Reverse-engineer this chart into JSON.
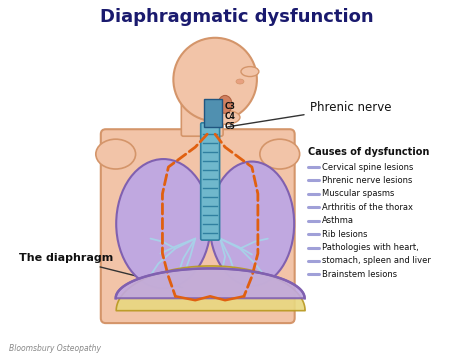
{
  "title": "Diaphragmatic dysfunction",
  "title_color": "#1a1a6e",
  "title_fontsize": 13,
  "title_fontweight": "bold",
  "bg_color": "#ffffff",
  "phrenic_nerve_label": "Phrenic nerve",
  "diaphragm_label": "The diaphragm",
  "c3_label": "C3",
  "c4_label": "C4",
  "c5_label": "C5",
  "causes_title": "Causes of dysfunction",
  "causes": [
    "Cervical spine lesions",
    "Phrenic nerve lesions",
    "Muscular spasms",
    "Arthritis of the thorax",
    "Asthma",
    "Rib lesions",
    "Pathologies with heart,",
    "stomach, spleen and liver",
    "Brainstem lesions"
  ],
  "cause_dash_color": "#a0a0d8",
  "watermark": "Bloomsbury Osteopathy",
  "skin_color": "#f2c4a8",
  "skin_edge": "#d4956a",
  "lung_color": "#c0a8e0",
  "lung_edge_color": "#8060b0",
  "lung_inner_color": "#a8d0e8",
  "trachea_color": "#70b8cc",
  "trachea_edge": "#3080a0",
  "orange_nerve_color": "#e06010",
  "diaphragm_top_color": "#c0a8e0",
  "diaphragm_bot_color": "#e8d890",
  "diaphragm_edge": "#8060b0",
  "abdomen_color": "#e8d880",
  "abdomen_edge": "#b89820",
  "cervical_block_color": "#5090b0"
}
